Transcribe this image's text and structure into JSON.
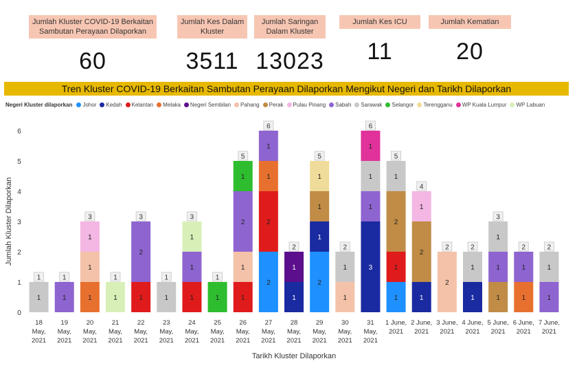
{
  "kpis": [
    {
      "label": "Jumlah Kluster COVID-19 Berkaitan Sambutan Perayaan Dilaporkan",
      "value": "60"
    },
    {
      "label": "Jumlah Kes Dalam Kluster",
      "value": "3511"
    },
    {
      "label": "Jumlah Saringan Dalam Kluster",
      "value": "13023"
    },
    {
      "label": "Jumlah Kes ICU",
      "value": "11"
    },
    {
      "label": "Jumlah Kematian",
      "value": "20"
    }
  ],
  "banner": "Tren Kluster COVID-19 Berkaitan Sambutan Perayaan Dilaporkan Mengikut Negeri dan Tarikh Dilaporkan",
  "legend": {
    "title": "Negeri Kluster dilaporkan",
    "items": [
      {
        "name": "Johor",
        "color": "#1e90ff"
      },
      {
        "name": "Kedah",
        "color": "#1a2aa0"
      },
      {
        "name": "Kelantan",
        "color": "#e01b1b"
      },
      {
        "name": "Melaka",
        "color": "#e8702e"
      },
      {
        "name": "Negeri Sembilan",
        "color": "#5b0f8c"
      },
      {
        "name": "Pahang",
        "color": "#f4c2a8"
      },
      {
        "name": "Perak",
        "color": "#c08c46"
      },
      {
        "name": "Pulau Pinang",
        "color": "#f4b6e2"
      },
      {
        "name": "Sabah",
        "color": "#8e64d0"
      },
      {
        "name": "Sarawak",
        "color": "#c8c8c8"
      },
      {
        "name": "Selangor",
        "color": "#2ebd2e"
      },
      {
        "name": "Terengganu",
        "color": "#f0dc9a"
      },
      {
        "name": "WP Kuala Lumpur",
        "color": "#e0329a"
      },
      {
        "name": "WP Labuan",
        "color": "#d8f0b8"
      }
    ]
  },
  "chart_data": {
    "type": "bar",
    "stacked": true,
    "xlabel": "Tarikh Kluster Dilaporkan",
    "ylabel": "Jumlah Kluster Dilaporkan",
    "ylim": [
      0,
      6
    ],
    "yticks": [
      0,
      1,
      2,
      3,
      4,
      5,
      6
    ],
    "categories": [
      [
        "18",
        "May,",
        "2021"
      ],
      [
        "19",
        "May,",
        "2021"
      ],
      [
        "20",
        "May,",
        "2021"
      ],
      [
        "21",
        "May,",
        "2021"
      ],
      [
        "22",
        "May,",
        "2021"
      ],
      [
        "23",
        "May,",
        "2021"
      ],
      [
        "24",
        "May,",
        "2021"
      ],
      [
        "25",
        "May,",
        "2021"
      ],
      [
        "26",
        "May,",
        "2021"
      ],
      [
        "27",
        "May,",
        "2021"
      ],
      [
        "28",
        "May,",
        "2021"
      ],
      [
        "29",
        "May,",
        "2021"
      ],
      [
        "30",
        "May,",
        "2021"
      ],
      [
        "31",
        "May,",
        "2021"
      ],
      [
        "1 June,",
        "2021"
      ],
      [
        "2 June,",
        "2021"
      ],
      [
        "3 June,",
        "2021"
      ],
      [
        "4 June,",
        "2021"
      ],
      [
        "5 June,",
        "2021"
      ],
      [
        "6 June,",
        "2021"
      ],
      [
        "7 June,",
        "2021"
      ]
    ],
    "totals": [
      1,
      1,
      3,
      1,
      3,
      1,
      3,
      1,
      5,
      6,
      2,
      5,
      2,
      6,
      5,
      4,
      2,
      2,
      3,
      2,
      2
    ],
    "stacks": [
      [
        {
          "state": "Sarawak",
          "value": 1
        }
      ],
      [
        {
          "state": "Sabah",
          "value": 1
        }
      ],
      [
        {
          "state": "Melaka",
          "value": 1
        },
        {
          "state": "Pahang",
          "value": 1
        },
        {
          "state": "Pulau Pinang",
          "value": 1
        }
      ],
      [
        {
          "state": "WP Labuan",
          "value": 1
        }
      ],
      [
        {
          "state": "Kelantan",
          "value": 1
        },
        {
          "state": "Sabah",
          "value": 2
        }
      ],
      [
        {
          "state": "Sarawak",
          "value": 1
        }
      ],
      [
        {
          "state": "Kelantan",
          "value": 1
        },
        {
          "state": "Sabah",
          "value": 1
        },
        {
          "state": "WP Labuan",
          "value": 1
        }
      ],
      [
        {
          "state": "Selangor",
          "value": 1
        }
      ],
      [
        {
          "state": "Kelantan",
          "value": 1
        },
        {
          "state": "Pahang",
          "value": 1
        },
        {
          "state": "Sabah",
          "value": 2
        },
        {
          "state": "Selangor",
          "value": 1
        }
      ],
      [
        {
          "state": "Johor",
          "value": 2
        },
        {
          "state": "Kelantan",
          "value": 2
        },
        {
          "state": "Melaka",
          "value": 1
        },
        {
          "state": "Sabah",
          "value": 1
        }
      ],
      [
        {
          "state": "Kedah",
          "value": 1
        },
        {
          "state": "Negeri Sembilan",
          "value": 1
        }
      ],
      [
        {
          "state": "Johor",
          "value": 2
        },
        {
          "state": "Kedah",
          "value": 1
        },
        {
          "state": "Perak",
          "value": 1
        },
        {
          "state": "Terengganu",
          "value": 1
        }
      ],
      [
        {
          "state": "Pahang",
          "value": 1
        },
        {
          "state": "Sarawak",
          "value": 1
        }
      ],
      [
        {
          "state": "Kedah",
          "value": 3
        },
        {
          "state": "Sabah",
          "value": 1
        },
        {
          "state": "Sarawak",
          "value": 1
        },
        {
          "state": "WP Kuala Lumpur",
          "value": 1
        }
      ],
      [
        {
          "state": "Johor",
          "value": 1
        },
        {
          "state": "Kelantan",
          "value": 1
        },
        {
          "state": "Perak",
          "value": 2
        },
        {
          "state": "Sarawak",
          "value": 1
        }
      ],
      [
        {
          "state": "Kedah",
          "value": 1
        },
        {
          "state": "Perak",
          "value": 2
        },
        {
          "state": "Pulau Pinang",
          "value": 1
        }
      ],
      [
        {
          "state": "Pahang",
          "value": 2
        }
      ],
      [
        {
          "state": "Kedah",
          "value": 1
        },
        {
          "state": "Sarawak",
          "value": 1
        }
      ],
      [
        {
          "state": "Perak",
          "value": 1
        },
        {
          "state": "Sabah",
          "value": 1
        },
        {
          "state": "Sarawak",
          "value": 1
        }
      ],
      [
        {
          "state": "Melaka",
          "value": 1
        },
        {
          "state": "Sabah",
          "value": 1
        }
      ],
      [
        {
          "state": "Sabah",
          "value": 1
        },
        {
          "state": "Sarawak",
          "value": 1
        }
      ]
    ]
  }
}
